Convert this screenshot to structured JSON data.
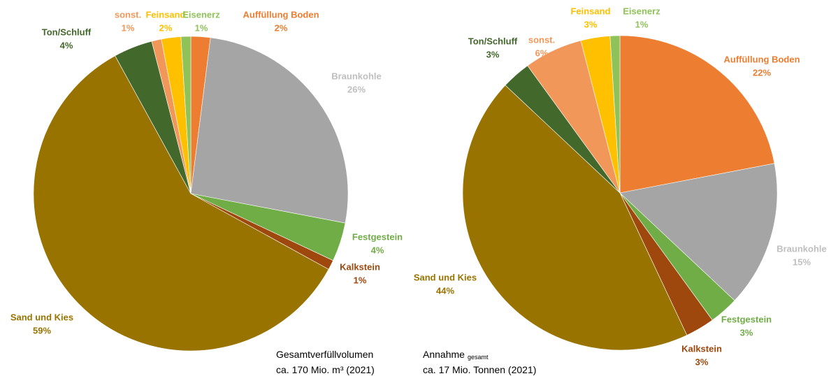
{
  "chart_data": [
    {
      "type": "pie",
      "categories": [
        "Auffüllung Boden",
        "Braunkohle",
        "Festgestein",
        "Kalkstein",
        "Sand und Kies",
        "Ton/Schluff",
        "sonst.",
        "Feinsand",
        "Eisenerz"
      ],
      "values": [
        2,
        26,
        4,
        1,
        59,
        4,
        1,
        2,
        1
      ],
      "value_labels": [
        "2%",
        "26%",
        "4%",
        "1%",
        "59%",
        "4%",
        "1%",
        "2%",
        "1%"
      ],
      "colors": [
        "#ed7d31",
        "#a5a5a5",
        "#70ad47",
        "#9e480e",
        "#997300",
        "#43682b",
        "#f1975a",
        "#ffc000",
        "#8fc35a"
      ],
      "caption": [
        {
          "text": "Gesamtverfüllvolumen"
        },
        {
          "text": "ca. 170 Mio. m³ (2021)"
        }
      ]
    },
    {
      "type": "pie",
      "categories": [
        "Auffüllung Boden",
        "Braunkohle",
        "Festgestein",
        "Kalkstein",
        "Sand und Kies",
        "Ton/Schluff",
        "sonst.",
        "Feinsand",
        "Eisenerz"
      ],
      "values": [
        22,
        15,
        3,
        3,
        44,
        3,
        6,
        3,
        1
      ],
      "value_labels": [
        "22%",
        "15%",
        "3%",
        "3%",
        "44%",
        "3%",
        "6%",
        "3%",
        "1%"
      ],
      "colors": [
        "#ed7d31",
        "#a5a5a5",
        "#70ad47",
        "#9e480e",
        "#997300",
        "#43682b",
        "#f1975a",
        "#ffc000",
        "#8fc35a"
      ],
      "caption": [
        {
          "text": "Annahme",
          "subscript": "gesamt"
        },
        {
          "text": "ca. 17 Mio. Tonnen (2021)"
        }
      ]
    }
  ]
}
